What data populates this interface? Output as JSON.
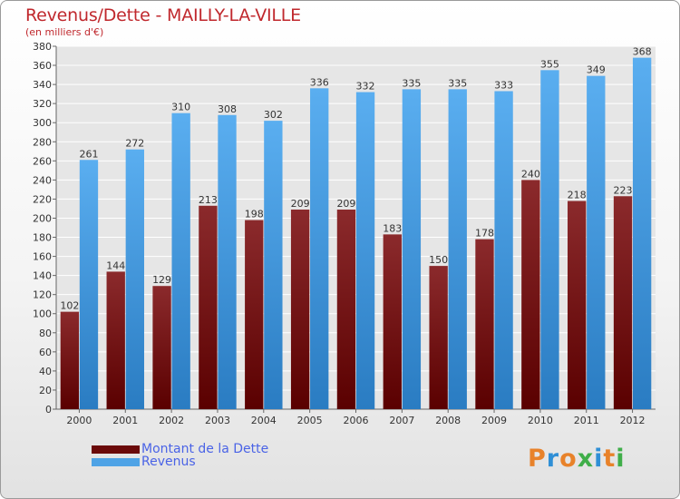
{
  "title": "Revenus/Dette - MAILLY-LA-VILLE",
  "subtitle": "(en milliers d'€)",
  "legend": [
    {
      "label": "Montant de la Dette",
      "color": "#6b0a0a"
    },
    {
      "label": "Revenus",
      "color": "#4fa3e6"
    }
  ],
  "logo": {
    "text": "Proxiti",
    "colors": [
      "#e8822a",
      "#2f8fd6",
      "#e8822a",
      "#3fae49",
      "#2f8fd6",
      "#e8822a",
      "#3fae49"
    ]
  },
  "colors": {
    "dette_top": "#8b2a2c",
    "dette_bottom": "#5a0000",
    "revenus_top": "#5aaef0",
    "revenus_bottom": "#2a7cc2",
    "grid": "#ffffff",
    "plot_bg": "#e6e6e6"
  },
  "chart_data": {
    "type": "bar",
    "categories": [
      "2000",
      "2001",
      "2002",
      "2003",
      "2004",
      "2005",
      "2006",
      "2007",
      "2008",
      "2009",
      "2010",
      "2011",
      "2012"
    ],
    "series": [
      {
        "name": "Montant de la Dette",
        "values": [
          102,
          144,
          129,
          213,
          198,
          209,
          209,
          183,
          150,
          178,
          240,
          218,
          223
        ]
      },
      {
        "name": "Revenus",
        "values": [
          261,
          272,
          310,
          308,
          302,
          336,
          332,
          335,
          335,
          333,
          355,
          349,
          368
        ]
      }
    ],
    "ylim": [
      0,
      380
    ],
    "ytick_step": 20,
    "grid": true,
    "legend_position": "bottom-left"
  }
}
